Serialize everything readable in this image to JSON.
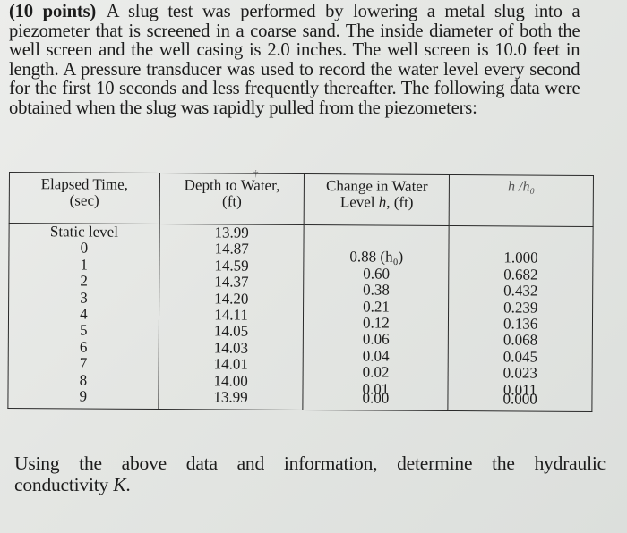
{
  "problem": {
    "points_label": "(10 points)",
    "intro_text": "A slug test was performed by lowering a metal slug into a piezometer that is screened in a coarse sand. The inside diameter of both the well screen and the well casing is 2.0 inches. The well screen is 10.0 feet in length. A pressure transducer was used to record the water level every second for the first 10 seconds and less frequently thereafter. The following data were obtained when the slug was rapidly pulled from the piezometers:",
    "question_words": [
      "Using",
      "the",
      "above",
      "data",
      "and",
      "information,",
      "determine",
      "the",
      "hydraulic"
    ],
    "question_line2_prefix": "conductivity ",
    "question_line2_var": "K",
    "question_line2_suffix": "."
  },
  "table": {
    "headers": {
      "time_line1": "Elapsed Time,",
      "time_line2": "(sec)",
      "depth_line1": "Depth to Water,",
      "depth_line2": "(ft)",
      "change_line1": "Change in Water",
      "change_line2_prefix": "Level ",
      "change_line2_var": "h",
      "change_line2_suffix": ", (ft)",
      "ratio": "h /h₀"
    },
    "static_row": {
      "time": "Static level",
      "depth": "13.99"
    },
    "rows": [
      {
        "time": "0",
        "depth": "14.87",
        "change": "0.88 (h₀)",
        "ratio": "1.000"
      },
      {
        "time": "1",
        "depth": "14.59",
        "change": "0.60",
        "ratio": "0.682"
      },
      {
        "time": "2",
        "depth": "14.37",
        "change": "0.38",
        "ratio": "0.432"
      },
      {
        "time": "3",
        "depth": "14.20",
        "change": "0.21",
        "ratio": "0.239"
      },
      {
        "time": "4",
        "depth": "14.11",
        "change": "0.12",
        "ratio": "0.136"
      },
      {
        "time": "5",
        "depth": "14.05",
        "change": "0.06",
        "ratio": "0.068"
      },
      {
        "time": "6",
        "depth": "14.03",
        "change": "0.04",
        "ratio": "0.045"
      },
      {
        "time": "7",
        "depth": "14.01",
        "change": "0.02",
        "ratio": "0.023"
      },
      {
        "time": "8",
        "depth": "14.00",
        "change": "0.01",
        "ratio": "0.011"
      },
      {
        "time": "9",
        "depth": "13.99",
        "change": "0.00",
        "ratio": "0.000"
      }
    ]
  }
}
